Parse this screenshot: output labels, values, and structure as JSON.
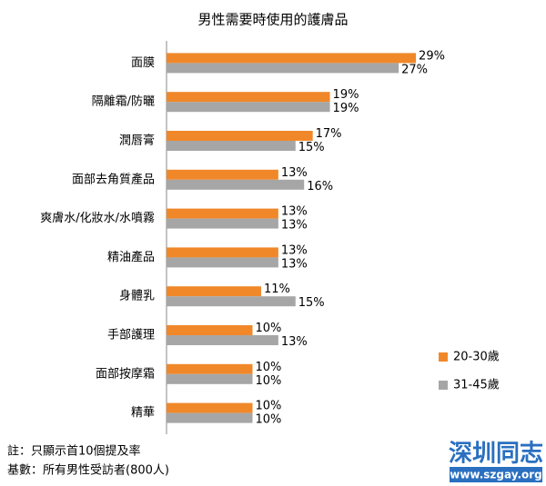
{
  "chart_data": {
    "type": "hbar",
    "title": "男性需要時使用的護膚品",
    "categories": [
      "面膜",
      "隔離霜/防曬",
      "潤唇膏",
      "面部去角質產品",
      "爽膚水/化妝水/水噴霧",
      "精油產品",
      "身體乳",
      "手部護理",
      "面部按摩霜",
      "精華"
    ],
    "series": [
      {
        "name": "20-30歲",
        "color": "#f0882a",
        "values": [
          29,
          19,
          17,
          13,
          13,
          13,
          11,
          10,
          10,
          10
        ],
        "value_labels": [
          "29%",
          "19%",
          "17%",
          "13%",
          "13%",
          "13%",
          "11%",
          "10%",
          "10%",
          "10%"
        ]
      },
      {
        "name": "31-45歲",
        "color": "#a6a6a6",
        "values": [
          27,
          19,
          15,
          16,
          13,
          13,
          15,
          13,
          10,
          10
        ],
        "value_labels": [
          "27%",
          "19%",
          "15%",
          "16%",
          "13%",
          "13%",
          "15%",
          "13%",
          "10%",
          "10%"
        ]
      }
    ],
    "xlim": [
      0,
      40
    ],
    "legend": "right",
    "notes": [
      "註：只顯示首10個提及率",
      "基數：所有男性受訪者(800人)"
    ]
  },
  "watermark": {
    "title": "深圳同志",
    "url": "www.szgay.org"
  }
}
